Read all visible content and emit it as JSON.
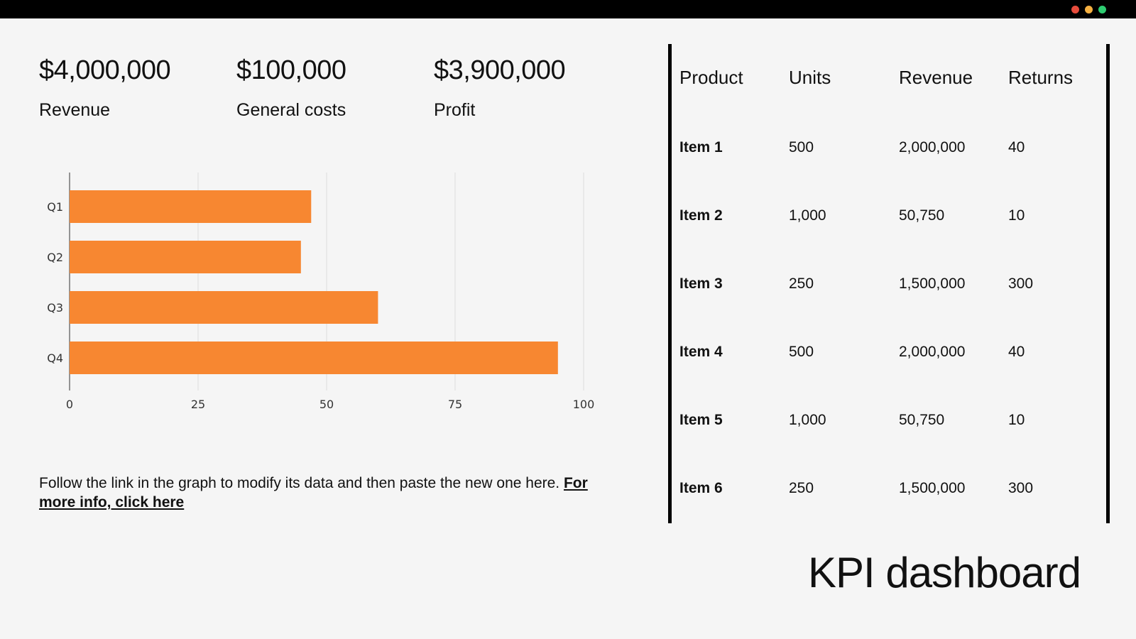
{
  "window": {
    "dots": [
      "#e74c3c",
      "#f5b041",
      "#2ecc71"
    ]
  },
  "kpis": [
    {
      "value": "$4,000,000",
      "label": "Revenue"
    },
    {
      "value": "$100,000",
      "label": "General costs"
    },
    {
      "value": "$3,900,000",
      "label": "Profit"
    }
  ],
  "chart_data": {
    "type": "bar",
    "orientation": "horizontal",
    "categories": [
      "Q1",
      "Q2",
      "Q3",
      "Q4"
    ],
    "values": [
      47,
      45,
      60,
      95
    ],
    "xlim": [
      0,
      100
    ],
    "xticks": [
      "0",
      "25",
      "50",
      "75",
      "100"
    ],
    "grid": true,
    "bar_color": "#f78731"
  },
  "footnote": {
    "text": "Follow the link in the graph to modify its data and then paste the new one here. ",
    "link": "For more info, click here"
  },
  "table": {
    "headers": [
      "Product",
      "Units",
      "Revenue",
      "Returns"
    ],
    "rows": [
      [
        "Item 1",
        "500",
        "2,000,000",
        "40"
      ],
      [
        "Item 2",
        "1,000",
        "50,750",
        "10"
      ],
      [
        "Item 3",
        "250",
        "1,500,000",
        "300"
      ],
      [
        "Item 4",
        "500",
        "2,000,000",
        "40"
      ],
      [
        "Item 5",
        "1,000",
        "50,750",
        "10"
      ],
      [
        "Item 6",
        "250",
        "1,500,000",
        "300"
      ]
    ]
  },
  "title": "KPI dashboard"
}
